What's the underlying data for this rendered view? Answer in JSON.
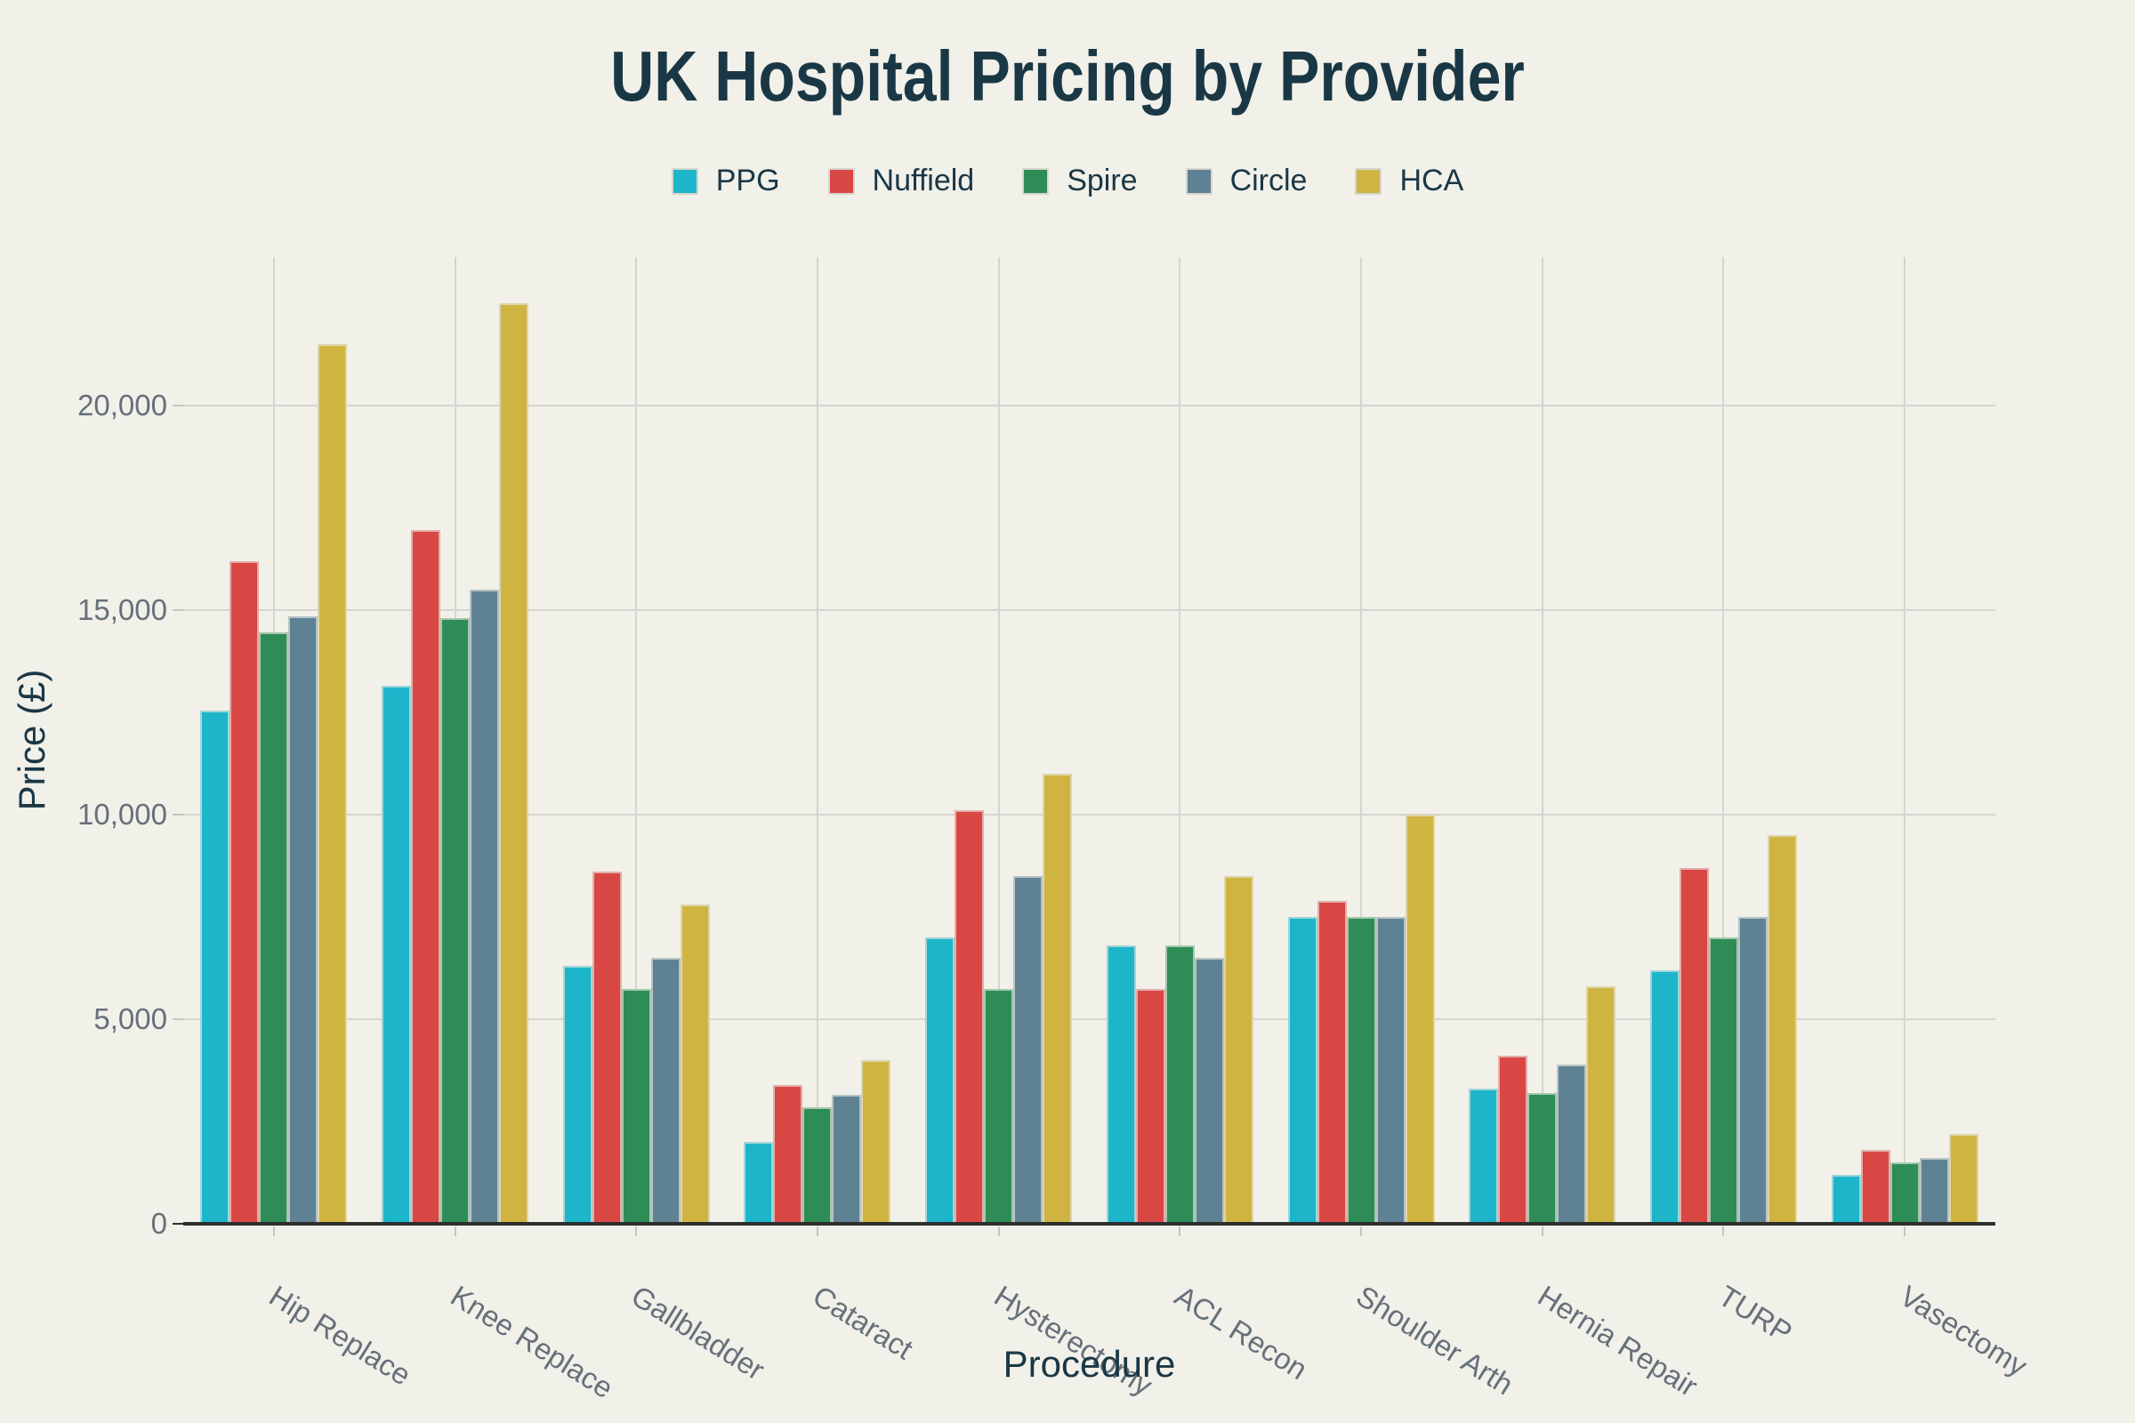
{
  "title": {
    "text": "UK Hospital Pricing by Provider"
  },
  "colors": {
    "background": "#f1f0e9",
    "grid": "#d5d4ce",
    "axis_line": "#2e2e2e",
    "tick_mark": "#c6c5bf",
    "tick_label": "#66707a",
    "axis_title": "#1a3745",
    "title": "#1a3745",
    "legend_swatch_border": "#d6d5ce"
  },
  "chart_data": {
    "type": "bar",
    "title": "UK Hospital Pricing by Provider",
    "xlabel": "Procedure",
    "ylabel": "Price (£)",
    "grid": true,
    "legend_position": "top-center",
    "categories": [
      "Hip Replace",
      "Knee Replace",
      "Gallbladder",
      "Cataract",
      "Hysterectomy",
      "ACL Recon",
      "Shoulder Arth",
      "Hernia Repair",
      "TURP",
      "Vasectomy"
    ],
    "series": [
      {
        "name": "PPG",
        "color": "#1db5c9",
        "values": [
          12550,
          13150,
          6300,
          2000,
          7000,
          6800,
          7500,
          3300,
          6200,
          1200
        ]
      },
      {
        "name": "Nuffield",
        "color": "#d94745",
        "values": [
          16200,
          16950,
          8600,
          3400,
          10100,
          5750,
          7900,
          4100,
          8700,
          1800
        ]
      },
      {
        "name": "Spire",
        "color": "#2e8d56",
        "values": [
          14450,
          14800,
          5750,
          2850,
          5750,
          6800,
          7500,
          3200,
          7000,
          1500
        ]
      },
      {
        "name": "Circle",
        "color": "#5e8293",
        "values": [
          14850,
          15500,
          6500,
          3150,
          8500,
          6500,
          7500,
          3900,
          7500,
          1600
        ]
      },
      {
        "name": "HCA",
        "color": "#cfb442",
        "values": [
          21500,
          22500,
          7800,
          4000,
          11000,
          8500,
          10000,
          5800,
          9500,
          2200
        ]
      }
    ],
    "yticks": [
      {
        "value": 0,
        "label": "0"
      },
      {
        "value": 5000,
        "label": "5,000"
      },
      {
        "value": 10000,
        "label": "10,000"
      },
      {
        "value": 15000,
        "label": "15,000"
      },
      {
        "value": 20000,
        "label": "20,000"
      }
    ],
    "ylim": [
      0,
      23630
    ]
  }
}
